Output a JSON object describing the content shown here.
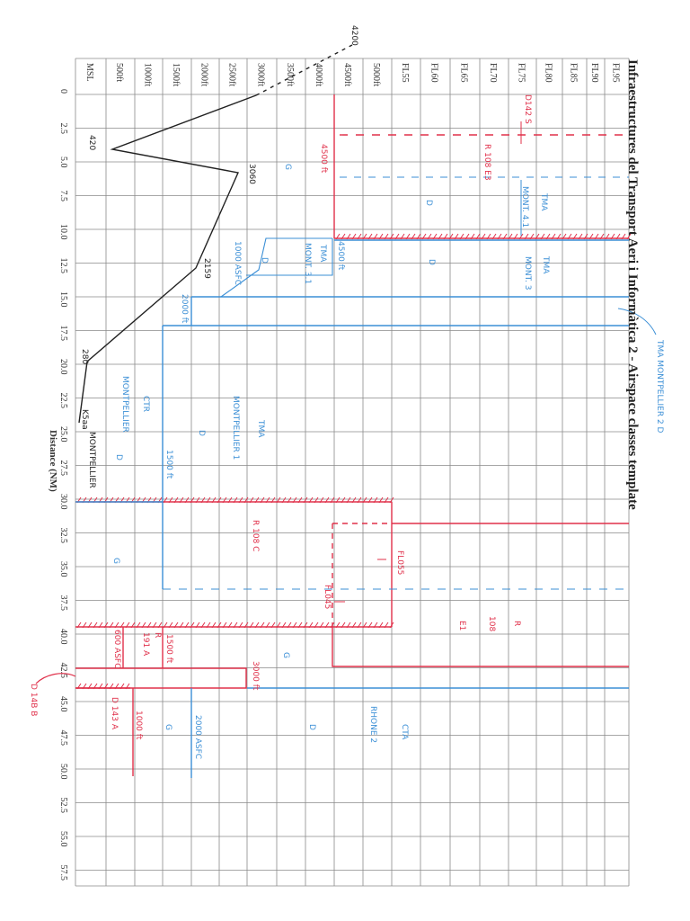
{
  "title": "Infraestructures del Transport Aeri i Informàtica 2 - Airspace classes template",
  "x_axis_label": "Distance (NM)",
  "altitude_labels": [
    "MSL",
    "500ft",
    "1000ft",
    "1500ft",
    "2000ft",
    "2500ft",
    "3000ft",
    "3500ft",
    "4000ft",
    "4500ft",
    "5000ft",
    "FL55",
    "FL60",
    "FL65",
    "FL70",
    "FL75",
    "FL80",
    "FL85",
    "FL90",
    "FL95"
  ],
  "distance_labels": [
    "0",
    "2.5",
    "5.0",
    "7.5",
    "10.0",
    "12.5",
    "15.0",
    "17.5",
    "20.0",
    "22.5",
    "25.0",
    "27.5",
    "30.0",
    "32.5",
    "35.0",
    "37.5",
    "40.0",
    "42.5",
    "45.0",
    "47.5",
    "50.0",
    "52.5",
    "55.0",
    "57.5"
  ],
  "colors": {
    "red": "#e0304a",
    "blue": "#3b8fd6",
    "black": "#222222",
    "grid": "#8a8a8a"
  },
  "annotations": [
    {
      "text": "4200",
      "color": "black"
    },
    {
      "text": "420",
      "color": "black"
    },
    {
      "text": "3060",
      "color": "black"
    },
    {
      "text": "2159",
      "color": "black"
    },
    {
      "text": "280",
      "color": "black"
    },
    {
      "text": "K5aa",
      "color": "black"
    },
    {
      "text": "MONTPELLIER",
      "color": "black"
    },
    {
      "text": "4500 ft",
      "color": "red"
    },
    {
      "text": "D142 S",
      "color": "red"
    },
    {
      "text": "R 108 E3",
      "color": "red"
    },
    {
      "text": "G",
      "color": "blue"
    },
    {
      "text": "TMA",
      "color": "blue"
    },
    {
      "text": "MONT. 4.1",
      "color": "blue"
    },
    {
      "text": "D",
      "color": "blue"
    },
    {
      "text": "TMA",
      "color": "blue"
    },
    {
      "text": "MONT. 3",
      "color": "blue"
    },
    {
      "text": "D",
      "color": "blue"
    },
    {
      "text": "4500 ft",
      "color": "blue"
    },
    {
      "text": "TMA",
      "color": "blue"
    },
    {
      "text": "MONT. 3.1",
      "color": "blue"
    },
    {
      "text": "D",
      "color": "blue"
    },
    {
      "text": "1000 ASFC",
      "color": "blue"
    },
    {
      "text": "2000 ft",
      "color": "blue"
    },
    {
      "text": "TMA MONTPELLIER 2 D",
      "color": "blue"
    },
    {
      "text": "CTR",
      "color": "blue"
    },
    {
      "text": "MONTPELLIER",
      "color": "blue"
    },
    {
      "text": "D",
      "color": "blue"
    },
    {
      "text": "TMA",
      "color": "blue"
    },
    {
      "text": "MONTPELLIER 1",
      "color": "blue"
    },
    {
      "text": "D",
      "color": "blue"
    },
    {
      "text": "1500 ft",
      "color": "blue"
    },
    {
      "text": "R 108 C",
      "color": "red"
    },
    {
      "text": "G",
      "color": "blue"
    },
    {
      "text": "FL055",
      "color": "red"
    },
    {
      "text": "FL045",
      "color": "red"
    },
    {
      "text": "R",
      "color": "red"
    },
    {
      "text": "108",
      "color": "red"
    },
    {
      "text": "E1",
      "color": "red"
    },
    {
      "text": "600 ASFC",
      "color": "red"
    },
    {
      "text": "R",
      "color": "red"
    },
    {
      "text": "191 A",
      "color": "red"
    },
    {
      "text": "1500 ft",
      "color": "red"
    },
    {
      "text": "3000 ft",
      "color": "red"
    },
    {
      "text": "G",
      "color": "blue"
    },
    {
      "text": "G",
      "color": "blue"
    },
    {
      "text": "D 143 A",
      "color": "red"
    },
    {
      "text": "1000 ft",
      "color": "red"
    },
    {
      "text": "2000 ASFC",
      "color": "blue"
    },
    {
      "text": "D",
      "color": "blue"
    },
    {
      "text": "RHONE 2",
      "color": "blue"
    },
    {
      "text": "CTA",
      "color": "blue"
    },
    {
      "text": "D 14B B",
      "color": "red"
    }
  ]
}
